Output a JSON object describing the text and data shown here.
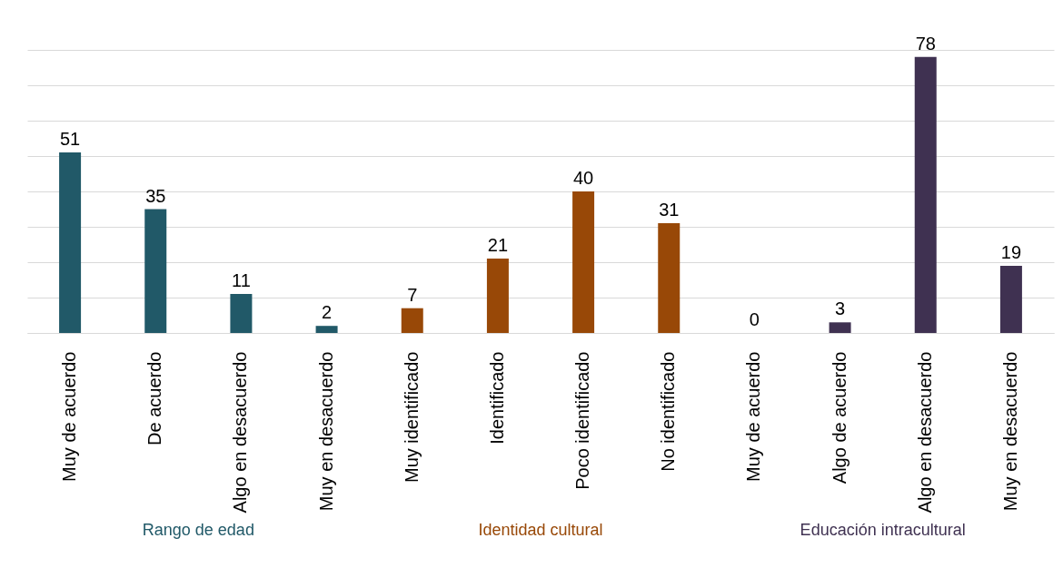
{
  "chart_data": {
    "type": "bar",
    "categories": [
      "Muy de acuerdo",
      "De acuerdo",
      "Algo en desacuerdo",
      "Muy en desacuerdo",
      "Muy identificado",
      "Identificado",
      "Poco identificado",
      "No identificado",
      "Muy de acuerdo",
      "Algo de acuerdo",
      "Algo en desacuerdo",
      "Muy en desacuerdo"
    ],
    "series": [
      {
        "name": "Rango de edad",
        "color": "#215968",
        "values": [
          51,
          35,
          11,
          2,
          null,
          null,
          null,
          null,
          null,
          null,
          null,
          null
        ]
      },
      {
        "name": "Identidad cultural",
        "color": "#984807",
        "values": [
          null,
          null,
          null,
          null,
          7,
          21,
          40,
          31,
          null,
          null,
          null,
          null
        ]
      },
      {
        "name": "Educación intracultural",
        "color": "#3f3151",
        "values": [
          null,
          null,
          null,
          null,
          null,
          null,
          null,
          null,
          0,
          3,
          78,
          19
        ]
      }
    ],
    "tick_labels": "x",
    "grid": true,
    "data_labels": true,
    "legend": false
  }
}
